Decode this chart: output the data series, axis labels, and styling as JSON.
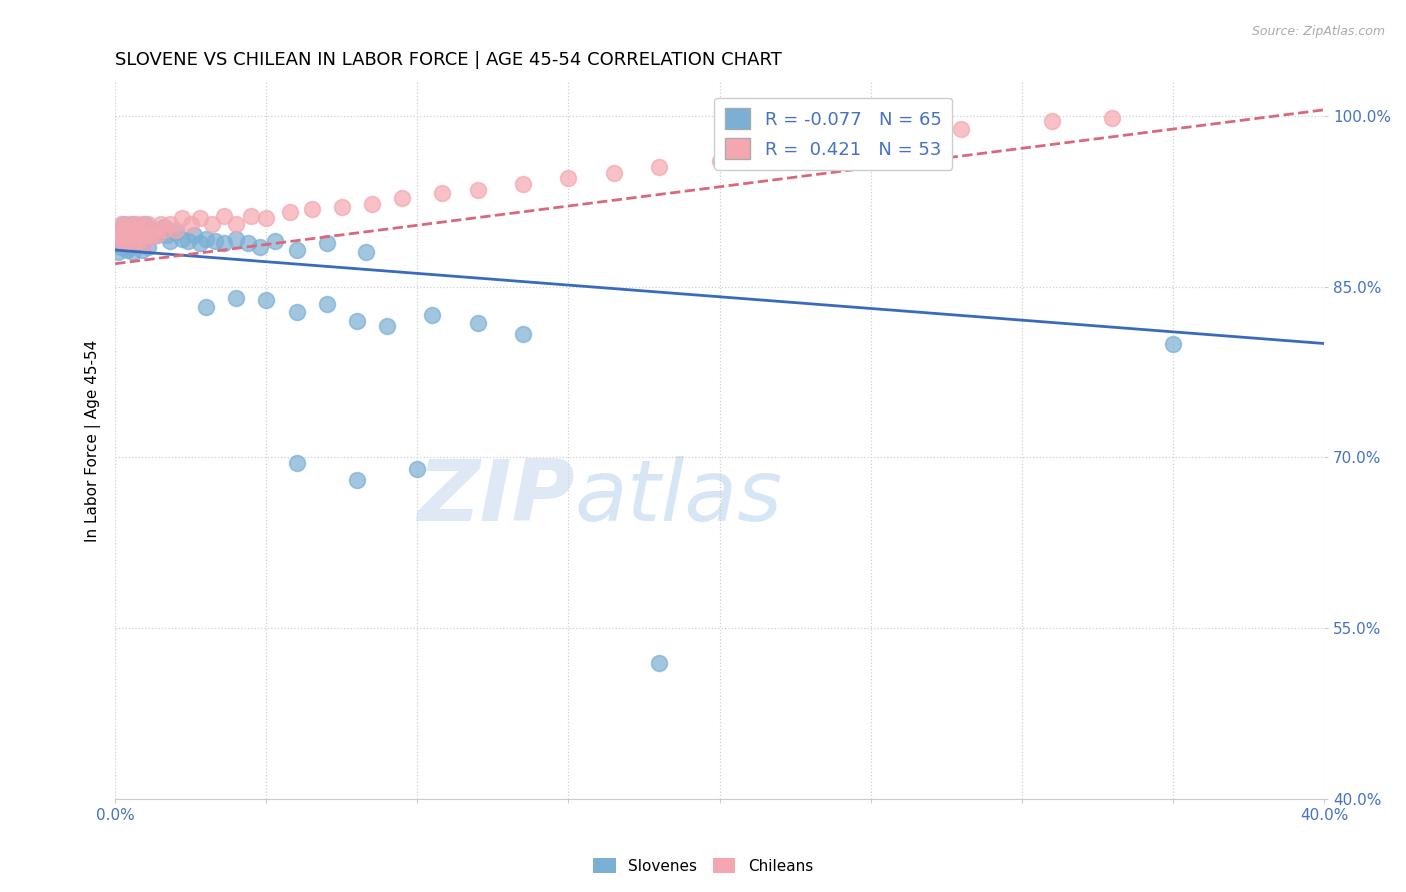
{
  "title": "SLOVENE VS CHILEAN IN LABOR FORCE | AGE 45-54 CORRELATION CHART",
  "source": "Source: ZipAtlas.com",
  "ylabel": "In Labor Force | Age 45-54",
  "xlim": [
    0.0,
    0.4
  ],
  "ylim": [
    0.4,
    1.03
  ],
  "xticks": [
    0.0,
    0.05,
    0.1,
    0.15,
    0.2,
    0.25,
    0.3,
    0.35,
    0.4
  ],
  "xticklabels": [
    "0.0%",
    "",
    "",
    "",
    "",
    "",
    "",
    "",
    "40.0%"
  ],
  "yticks": [
    0.4,
    0.55,
    0.7,
    0.85,
    1.0
  ],
  "yticklabels": [
    "40.0%",
    "55.0%",
    "70.0%",
    "85.0%",
    "100.0%"
  ],
  "slovene_color": "#7bafd4",
  "chilean_color": "#f4a7b0",
  "slovene_R": -0.077,
  "slovene_N": 65,
  "chilean_R": 0.421,
  "chilean_N": 53,
  "slovene_x": [
    0.001,
    0.001,
    0.001,
    0.002,
    0.002,
    0.002,
    0.003,
    0.003,
    0.003,
    0.004,
    0.004,
    0.004,
    0.005,
    0.005,
    0.005,
    0.006,
    0.006,
    0.006,
    0.007,
    0.007,
    0.008,
    0.008,
    0.009,
    0.009,
    0.01,
    0.01,
    0.011,
    0.011,
    0.012,
    0.013,
    0.014,
    0.015,
    0.016,
    0.017,
    0.018,
    0.02,
    0.022,
    0.024,
    0.026,
    0.028,
    0.03,
    0.033,
    0.036,
    0.04,
    0.044,
    0.048,
    0.053,
    0.06,
    0.07,
    0.083,
    0.03,
    0.04,
    0.05,
    0.06,
    0.07,
    0.08,
    0.09,
    0.105,
    0.12,
    0.135,
    0.06,
    0.08,
    0.1,
    0.18,
    0.35
  ],
  "slovene_y": [
    0.9,
    0.89,
    0.88,
    0.9,
    0.895,
    0.885,
    0.905,
    0.898,
    0.888,
    0.9,
    0.895,
    0.882,
    0.9,
    0.896,
    0.885,
    0.905,
    0.898,
    0.88,
    0.902,
    0.89,
    0.9,
    0.888,
    0.898,
    0.882,
    0.905,
    0.89,
    0.9,
    0.885,
    0.895,
    0.9,
    0.895,
    0.898,
    0.902,
    0.895,
    0.89,
    0.898,
    0.892,
    0.89,
    0.895,
    0.888,
    0.892,
    0.89,
    0.888,
    0.892,
    0.888,
    0.885,
    0.89,
    0.882,
    0.888,
    0.88,
    0.832,
    0.84,
    0.838,
    0.828,
    0.835,
    0.82,
    0.815,
    0.825,
    0.818,
    0.808,
    0.695,
    0.68,
    0.69,
    0.52,
    0.8
  ],
  "chilean_x": [
    0.001,
    0.001,
    0.002,
    0.002,
    0.003,
    0.003,
    0.004,
    0.004,
    0.005,
    0.005,
    0.006,
    0.006,
    0.007,
    0.007,
    0.008,
    0.008,
    0.009,
    0.01,
    0.01,
    0.011,
    0.012,
    0.013,
    0.014,
    0.015,
    0.016,
    0.018,
    0.02,
    0.022,
    0.025,
    0.028,
    0.032,
    0.036,
    0.04,
    0.045,
    0.05,
    0.058,
    0.065,
    0.075,
    0.085,
    0.095,
    0.108,
    0.12,
    0.135,
    0.15,
    0.165,
    0.18,
    0.2,
    0.22,
    0.24,
    0.26,
    0.28,
    0.31,
    0.33
  ],
  "chilean_y": [
    0.9,
    0.892,
    0.905,
    0.895,
    0.9,
    0.888,
    0.898,
    0.89,
    0.905,
    0.895,
    0.9,
    0.888,
    0.905,
    0.895,
    0.9,
    0.89,
    0.905,
    0.895,
    0.888,
    0.905,
    0.895,
    0.9,
    0.895,
    0.905,
    0.9,
    0.905,
    0.9,
    0.91,
    0.905,
    0.91,
    0.905,
    0.912,
    0.905,
    0.912,
    0.91,
    0.915,
    0.918,
    0.92,
    0.922,
    0.928,
    0.932,
    0.935,
    0.94,
    0.945,
    0.95,
    0.955,
    0.96,
    0.97,
    0.978,
    0.982,
    0.988,
    0.995,
    0.998
  ],
  "blue_line_x": [
    0.0,
    0.4
  ],
  "blue_line_y": [
    0.882,
    0.8
  ],
  "pink_line_x": [
    0.0,
    0.4
  ],
  "pink_line_y": [
    0.87,
    1.005
  ],
  "watermark_zip": "ZIP",
  "watermark_atlas": "atlas",
  "background_color": "#ffffff",
  "grid_color": "#d0d0d0",
  "axis_color": "#4472c4",
  "title_fontsize": 13,
  "label_fontsize": 11,
  "tick_fontsize": 11
}
